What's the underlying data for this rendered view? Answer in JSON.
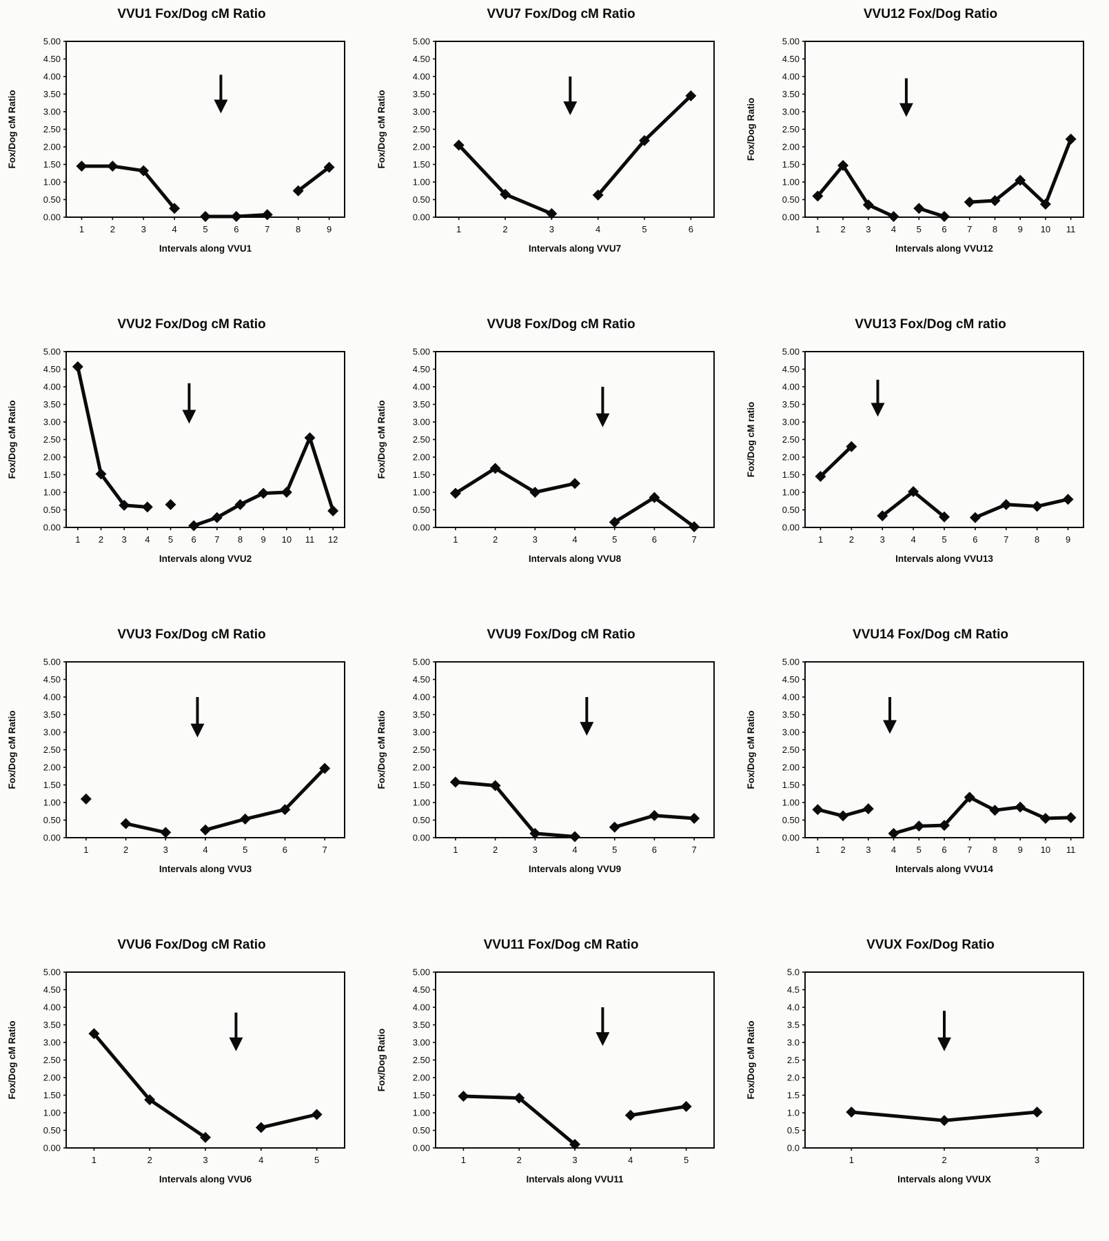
{
  "page": {
    "background": "#fbfbfa",
    "ink": "#0b0b0b",
    "figure_type": "scanned multi-panel line chart figure, 4 rows x 3 columns"
  },
  "chart_data": [
    {
      "id": "vvu1",
      "type": "line",
      "title": "VVU1 Fox/Dog cM Ratio",
      "xlabel": "Intervals along VVU1",
      "ylabel": "Fox/Dog cM Ratio",
      "ylim": [
        0,
        5
      ],
      "ytick_step": 0.5,
      "ytick_decimals": 2,
      "grid": false,
      "legend": "none",
      "x_categories": [
        1,
        2,
        3,
        4,
        5,
        6,
        7,
        8,
        9
      ],
      "series": [
        {
          "name": "fox_dog_ratio",
          "segments": [
            [
              [
                1,
                1.45
              ],
              [
                2,
                1.45
              ],
              [
                3,
                1.32
              ],
              [
                4,
                0.25
              ]
            ],
            [
              [
                5,
                0.02
              ],
              [
                6,
                0.02
              ],
              [
                7,
                0.07
              ]
            ],
            [
              [
                8,
                0.75
              ],
              [
                9,
                1.42
              ]
            ]
          ]
        }
      ],
      "annotation_arrow": {
        "x": 5.5,
        "y_from": 4.05,
        "y_to": 2.95
      }
    },
    {
      "id": "vvu7",
      "type": "line",
      "title": "VVU7 Fox/Dog cM Ratio",
      "xlabel": "Intervals along VVU7",
      "ylabel": "Fox/Dog cM Ratio",
      "ylim": [
        0,
        5
      ],
      "ytick_step": 0.5,
      "ytick_decimals": 2,
      "grid": false,
      "legend": "none",
      "x_categories": [
        1,
        2,
        3,
        4,
        5,
        6
      ],
      "series": [
        {
          "name": "fox_dog_ratio",
          "segments": [
            [
              [
                1,
                2.05
              ],
              [
                2,
                0.65
              ],
              [
                3,
                0.1
              ]
            ],
            [
              [
                4,
                0.63
              ],
              [
                5,
                2.18
              ],
              [
                6,
                3.45
              ]
            ]
          ]
        }
      ],
      "annotation_arrow": {
        "x": 3.4,
        "y_from": 4.0,
        "y_to": 2.9
      }
    },
    {
      "id": "vvu12",
      "type": "line",
      "title": "VVU12 Fox/Dog Ratio",
      "xlabel": "Intervals along VVU12",
      "ylabel": "Fox/Dog Ratio",
      "ylim": [
        0,
        5
      ],
      "ytick_step": 0.5,
      "ytick_decimals": 2,
      "grid": false,
      "legend": "none",
      "x_categories": [
        1,
        2,
        3,
        4,
        5,
        6,
        7,
        8,
        9,
        10,
        11
      ],
      "series": [
        {
          "name": "fox_dog_ratio",
          "segments": [
            [
              [
                1,
                0.6
              ],
              [
                2,
                1.47
              ],
              [
                3,
                0.35
              ],
              [
                4,
                0.02
              ]
            ],
            [
              [
                5,
                0.25
              ],
              [
                6,
                0.02
              ]
            ],
            [
              [
                7,
                0.43
              ],
              [
                8,
                0.47
              ],
              [
                9,
                1.05
              ],
              [
                10,
                0.37
              ],
              [
                11,
                2.22
              ]
            ]
          ]
        }
      ],
      "annotation_arrow": {
        "x": 4.5,
        "y_from": 3.95,
        "y_to": 2.85
      }
    },
    {
      "id": "vvu2",
      "type": "line",
      "title": "VVU2 Fox/Dog cM Ratio",
      "xlabel": "Intervals along VVU2",
      "ylabel": "Fox/Dog cM Ratio",
      "ylim": [
        0,
        5
      ],
      "ytick_step": 0.5,
      "ytick_decimals": 2,
      "grid": false,
      "legend": "none",
      "x_categories": [
        1,
        2,
        3,
        4,
        5,
        6,
        7,
        8,
        9,
        10,
        11,
        12
      ],
      "series": [
        {
          "name": "fox_dog_ratio",
          "segments": [
            [
              [
                1,
                4.57
              ],
              [
                2,
                1.52
              ],
              [
                3,
                0.63
              ],
              [
                4,
                0.58
              ]
            ],
            [
              [
                5,
                0.65
              ]
            ],
            [
              [
                6,
                0.05
              ],
              [
                7,
                0.28
              ],
              [
                8,
                0.65
              ],
              [
                9,
                0.97
              ],
              [
                10,
                1.0
              ],
              [
                11,
                2.55
              ],
              [
                12,
                0.47
              ]
            ]
          ]
        }
      ],
      "annotation_arrow": {
        "x": 5.8,
        "y_from": 4.1,
        "y_to": 2.95
      }
    },
    {
      "id": "vvu8",
      "type": "line",
      "title": "VVU8 Fox/Dog cM Ratio",
      "xlabel": "Intervals along VVU8",
      "ylabel": "Fox/Dog cM Ratio",
      "ylim": [
        0,
        5
      ],
      "ytick_step": 0.5,
      "ytick_decimals": 2,
      "grid": false,
      "legend": "none",
      "x_categories": [
        1,
        2,
        3,
        4,
        5,
        6,
        7
      ],
      "series": [
        {
          "name": "fox_dog_ratio",
          "segments": [
            [
              [
                1,
                0.97
              ],
              [
                2,
                1.68
              ],
              [
                3,
                1.0
              ],
              [
                4,
                1.25
              ]
            ],
            [
              [
                5,
                0.15
              ],
              [
                6,
                0.85
              ],
              [
                7,
                0.02
              ]
            ]
          ]
        }
      ],
      "annotation_arrow": {
        "x": 4.7,
        "y_from": 4.0,
        "y_to": 2.85
      }
    },
    {
      "id": "vvu13",
      "type": "line",
      "title": "VVU13 Fox/Dog cM ratio",
      "xlabel": "Intervals along VVU13",
      "ylabel": "Fox/Dog cM ratio",
      "ylim": [
        0,
        5
      ],
      "ytick_step": 0.5,
      "ytick_decimals": 2,
      "grid": false,
      "legend": "none",
      "x_categories": [
        1,
        2,
        3,
        4,
        5,
        6,
        7,
        8,
        9
      ],
      "series": [
        {
          "name": "fox_dog_ratio",
          "segments": [
            [
              [
                1,
                1.45
              ],
              [
                2,
                2.3
              ]
            ],
            [
              [
                3,
                0.33
              ],
              [
                4,
                1.02
              ],
              [
                5,
                0.3
              ]
            ],
            [
              [
                6,
                0.28
              ],
              [
                7,
                0.65
              ],
              [
                8,
                0.6
              ],
              [
                9,
                0.8
              ]
            ]
          ]
        }
      ],
      "annotation_arrow": {
        "x": 2.85,
        "y_from": 4.2,
        "y_to": 3.15
      }
    },
    {
      "id": "vvu3",
      "type": "line",
      "title": "VVU3 Fox/Dog cM Ratio",
      "xlabel": "Intervals along VVU3",
      "ylabel": "Fox/Dog cM Ratio",
      "ylim": [
        0,
        5
      ],
      "ytick_step": 0.5,
      "ytick_decimals": 2,
      "grid": false,
      "legend": "none",
      "x_categories": [
        1,
        2,
        3,
        4,
        5,
        6,
        7
      ],
      "series": [
        {
          "name": "fox_dog_ratio",
          "segments": [
            [
              [
                1,
                1.1
              ]
            ],
            [
              [
                2,
                0.4
              ],
              [
                3,
                0.15
              ]
            ],
            [
              [
                4,
                0.22
              ],
              [
                5,
                0.53
              ],
              [
                6,
                0.8
              ],
              [
                7,
                1.97
              ]
            ]
          ]
        }
      ],
      "annotation_arrow": {
        "x": 3.8,
        "y_from": 4.0,
        "y_to": 2.85
      }
    },
    {
      "id": "vvu9",
      "type": "line",
      "title": "VVU9 Fox/Dog cM Ratio",
      "xlabel": "Intervals along VVU9",
      "ylabel": "Fox/Dog cM Ratio",
      "ylim": [
        0,
        5
      ],
      "ytick_step": 0.5,
      "ytick_decimals": 2,
      "grid": false,
      "legend": "none",
      "x_categories": [
        1,
        2,
        3,
        4,
        5,
        6,
        7
      ],
      "series": [
        {
          "name": "fox_dog_ratio",
          "segments": [
            [
              [
                1,
                1.58
              ],
              [
                2,
                1.48
              ],
              [
                3,
                0.12
              ],
              [
                4,
                0.03
              ]
            ],
            [
              [
                5,
                0.3
              ],
              [
                6,
                0.63
              ],
              [
                7,
                0.55
              ]
            ]
          ]
        }
      ],
      "annotation_arrow": {
        "x": 4.3,
        "y_from": 4.0,
        "y_to": 2.9
      }
    },
    {
      "id": "vvu14",
      "type": "line",
      "title": "VVU14 Fox/Dog cM Ratio",
      "xlabel": "Intervals along VVU14",
      "ylabel": "Fox/Dog cM Ratio",
      "ylim": [
        0,
        5
      ],
      "ytick_step": 0.5,
      "ytick_decimals": 2,
      "grid": false,
      "legend": "none",
      "x_categories": [
        1,
        2,
        3,
        4,
        5,
        6,
        7,
        8,
        9,
        10,
        11
      ],
      "series": [
        {
          "name": "fox_dog_ratio",
          "segments": [
            [
              [
                1,
                0.8
              ],
              [
                2,
                0.62
              ],
              [
                3,
                0.82
              ]
            ],
            [
              [
                4,
                0.12
              ],
              [
                5,
                0.33
              ],
              [
                6,
                0.35
              ],
              [
                7,
                1.15
              ],
              [
                8,
                0.78
              ],
              [
                9,
                0.87
              ],
              [
                10,
                0.55
              ],
              [
                11,
                0.57
              ]
            ]
          ]
        }
      ],
      "annotation_arrow": {
        "x": 3.85,
        "y_from": 4.0,
        "y_to": 2.95
      }
    },
    {
      "id": "vvu6",
      "type": "line",
      "title": "VVU6 Fox/Dog cM Ratio",
      "xlabel": "Intervals along VVU6",
      "ylabel": "Fox/Dog cM Ratio",
      "ylim": [
        0,
        5
      ],
      "ytick_step": 0.5,
      "ytick_decimals": 2,
      "grid": false,
      "legend": "none",
      "x_categories": [
        1,
        2,
        3,
        4,
        5
      ],
      "series": [
        {
          "name": "fox_dog_ratio",
          "segments": [
            [
              [
                1,
                3.25
              ],
              [
                2,
                1.37
              ],
              [
                3,
                0.3
              ]
            ],
            [
              [
                4,
                0.58
              ],
              [
                5,
                0.95
              ]
            ]
          ]
        }
      ],
      "annotation_arrow": {
        "x": 3.55,
        "y_from": 3.85,
        "y_to": 2.75
      }
    },
    {
      "id": "vvu11",
      "type": "line",
      "title": "VVU11 Fox/Dog cM Ratio",
      "xlabel": "Intervals along VVU11",
      "ylabel": "Fox/Dog Ratio",
      "ylim": [
        0,
        5
      ],
      "ytick_step": 0.5,
      "ytick_decimals": 2,
      "grid": false,
      "legend": "none",
      "x_categories": [
        1,
        2,
        3,
        4,
        5
      ],
      "series": [
        {
          "name": "fox_dog_ratio",
          "segments": [
            [
              [
                1,
                1.47
              ],
              [
                2,
                1.42
              ],
              [
                3,
                0.1
              ]
            ],
            [
              [
                4,
                0.93
              ],
              [
                5,
                1.18
              ]
            ]
          ]
        }
      ],
      "annotation_arrow": {
        "x": 3.5,
        "y_from": 4.0,
        "y_to": 2.9
      }
    },
    {
      "id": "vvux",
      "type": "line",
      "title": "VVUX Fox/Dog Ratio",
      "xlabel": "Intervals along VVUX",
      "ylabel": "Fox/Dog cM Ratio",
      "ylim": [
        0,
        5
      ],
      "ytick_step": 0.5,
      "ytick_decimals": 1,
      "grid": false,
      "legend": "none",
      "x_categories": [
        1,
        2,
        3
      ],
      "series": [
        {
          "name": "fox_dog_ratio",
          "segments": [
            [
              [
                1,
                1.02
              ],
              [
                2,
                0.78
              ],
              [
                3,
                1.02
              ]
            ]
          ]
        }
      ],
      "annotation_arrow": {
        "x": 2.0,
        "y_from": 3.9,
        "y_to": 2.75
      }
    }
  ]
}
